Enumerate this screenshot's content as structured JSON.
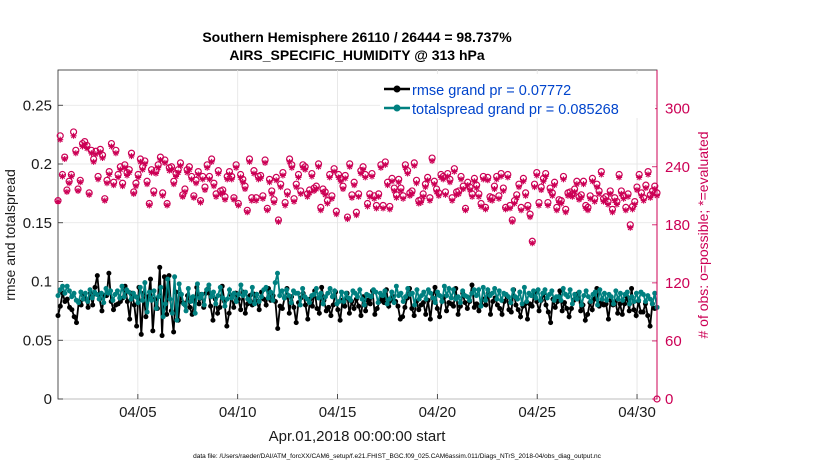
{
  "chart_data": {
    "type": "line",
    "title": "Southern Hemisphere 26110 / 26444 = 98.737%",
    "subtitle": "AIRS_SPECIFIC_HUMIDITY @ 313 hPa",
    "xlabel": "Apr.01,2018 00:00:00 start",
    "ylabel_left": "rmse and totalspread",
    "ylabel_right": "# of obs: o=possible; *=evaluated",
    "footer": "data file: /Users/raeder/DAI/ATM_forcXX/CAM6_setup/f.e21.FHIST_BGC.f09_025.CAM6assim.011/Diags_NTrS_2018-04/obs_diag_output.nc",
    "xlim": [
      1,
      31
    ],
    "ylim_left": [
      0,
      0.28
    ],
    "ylim_right": [
      0,
      340
    ],
    "xticks": [
      5,
      10,
      15,
      20,
      25,
      30
    ],
    "xtick_labels": [
      "04/05",
      "04/10",
      "04/15",
      "04/20",
      "04/25",
      "04/30"
    ],
    "yticks_left": [
      0,
      0.05,
      0.1,
      0.15,
      0.2,
      0.25
    ],
    "ytick_labels_left": [
      "0",
      "0.05",
      "0.1",
      "0.15",
      "0.2",
      "0.25"
    ],
    "yticks_right": [
      0,
      60,
      120,
      180,
      240,
      300
    ],
    "ytick_labels_right": [
      "0",
      "60",
      "120",
      "180",
      "240",
      "300"
    ],
    "legend": [
      "rmse grand pr = 0.07772",
      "totalspread grand pr = 0.085268"
    ],
    "colors": {
      "rmse": "#000000",
      "spread": "#008080",
      "obs": "#cc0055",
      "legend_text": "#0044cc"
    },
    "series": [
      {
        "name": "rmse",
        "axis": "left",
        "values": [
          0.071,
          0.079,
          0.09,
          0.083,
          0.085,
          0.078,
          0.076,
          0.07,
          0.065,
          0.083,
          0.08,
          0.088,
          0.085,
          0.078,
          0.09,
          0.08,
          0.095,
          0.105,
          0.085,
          0.075,
          0.088,
          0.088,
          0.107,
          0.083,
          0.076,
          0.08,
          0.081,
          0.083,
          0.086,
          0.096,
          0.083,
          0.068,
          0.09,
          0.08,
          0.062,
          0.095,
          0.055,
          0.09,
          0.07,
          0.087,
          0.102,
          0.058,
          0.085,
          0.077,
          0.112,
          0.054,
          0.104,
          0.072,
          0.105,
          0.075,
          0.057,
          0.091,
          0.067,
          0.089,
          0.082,
          0.08,
          0.088,
          0.078,
          0.072,
          0.083,
          0.095,
          0.081,
          0.089,
          0.078,
          0.09,
          0.094,
          0.079,
          0.067,
          0.085,
          0.073,
          0.078,
          0.096,
          0.083,
          0.062,
          0.073,
          0.088,
          0.078,
          0.09,
          0.085,
          0.076,
          0.091,
          0.073,
          0.081,
          0.088,
          0.08,
          0.089,
          0.083,
          0.076,
          0.091,
          0.085,
          0.08,
          0.094,
          0.084,
          0.088,
          0.083,
          0.06,
          0.079,
          0.077,
          0.086,
          0.094,
          0.073,
          0.087,
          0.078,
          0.065,
          0.082,
          0.086,
          0.09,
          0.08,
          0.068,
          0.085,
          0.079,
          0.092,
          0.077,
          0.073,
          0.095,
          0.084,
          0.075,
          0.078,
          0.071,
          0.08,
          0.091,
          0.076,
          0.067,
          0.084,
          0.079,
          0.09,
          0.073,
          0.083,
          0.077,
          0.085,
          0.079,
          0.071,
          0.087,
          0.075,
          0.084,
          0.081,
          0.092,
          0.072,
          0.077,
          0.083,
          0.085,
          0.082,
          0.093,
          0.079,
          0.084,
          0.087,
          0.083,
          0.079,
          0.068,
          0.07,
          0.078,
          0.086,
          0.094,
          0.077,
          0.071,
          0.083,
          0.076,
          0.08,
          0.082,
          0.072,
          0.084,
          0.068,
          0.086,
          0.095,
          0.077,
          0.07,
          0.083,
          0.087,
          0.075,
          0.082,
          0.081,
          0.079,
          0.094,
          0.072,
          0.079,
          0.09,
          0.082,
          0.077,
          0.083,
          0.097,
          0.078,
          0.081,
          0.075,
          0.08,
          0.085,
          0.08,
          0.09,
          0.072,
          0.083,
          0.086,
          0.08,
          0.077,
          0.072,
          0.083,
          0.088,
          0.076,
          0.074,
          0.093,
          0.08,
          0.076,
          0.07,
          0.079,
          0.081,
          0.068,
          0.081,
          0.079,
          0.091,
          0.083,
          0.075,
          0.084,
          0.09,
          0.08,
          0.074,
          0.065,
          0.085,
          0.078,
          0.083,
          0.092,
          0.075,
          0.082,
          0.077,
          0.07,
          0.077,
          0.084,
          0.089,
          0.09,
          0.075,
          0.08,
          0.067,
          0.072,
          0.082,
          0.076,
          0.085,
          0.094,
          0.079,
          0.082,
          0.08,
          0.081,
          0.068,
          0.084,
          0.08,
          0.083,
          0.073,
          0.081,
          0.072,
          0.081,
          0.087,
          0.075,
          0.094,
          0.076,
          0.071,
          0.083,
          0.074,
          0.074,
          0.081,
          0.071,
          0.062,
          0.081,
          0.077,
          0.078
        ]
      },
      {
        "name": "totalspread",
        "axis": "left",
        "values": [
          0.088,
          0.093,
          0.096,
          0.09,
          0.096,
          0.092,
          0.087,
          0.09,
          0.084,
          0.082,
          0.091,
          0.085,
          0.09,
          0.083,
          0.093,
          0.086,
          0.091,
          0.089,
          0.085,
          0.09,
          0.082,
          0.094,
          0.09,
          0.092,
          0.084,
          0.089,
          0.092,
          0.086,
          0.096,
          0.087,
          0.093,
          0.091,
          0.085,
          0.09,
          0.087,
          0.082,
          0.095,
          0.084,
          0.099,
          0.074,
          0.091,
          0.084,
          0.092,
          0.077,
          0.087,
          0.095,
          0.07,
          0.081,
          0.102,
          0.085,
          0.073,
          0.104,
          0.067,
          0.098,
          0.089,
          0.081,
          0.075,
          0.094,
          0.083,
          0.087,
          0.073,
          0.098,
          0.086,
          0.089,
          0.08,
          0.093,
          0.097,
          0.087,
          0.091,
          0.081,
          0.088,
          0.095,
          0.086,
          0.079,
          0.085,
          0.093,
          0.086,
          0.09,
          0.083,
          0.089,
          0.097,
          0.088,
          0.091,
          0.085,
          0.083,
          0.095,
          0.081,
          0.089,
          0.083,
          0.087,
          0.093,
          0.095,
          0.086,
          0.091,
          0.084,
          0.099,
          0.107,
          0.088,
          0.092,
          0.086,
          0.093,
          0.088,
          0.082,
          0.092,
          0.09,
          0.09,
          0.08,
          0.094,
          0.087,
          0.085,
          0.082,
          0.088,
          0.089,
          0.094,
          0.086,
          0.09,
          0.081,
          0.087,
          0.09,
          0.094,
          0.087,
          0.092,
          0.081,
          0.083,
          0.091,
          0.083,
          0.09,
          0.086,
          0.084,
          0.092,
          0.09,
          0.087,
          0.093,
          0.085,
          0.08,
          0.089,
          0.088,
          0.087,
          0.093,
          0.091,
          0.082,
          0.09,
          0.088,
          0.092,
          0.081,
          0.085,
          0.091,
          0.082,
          0.096,
          0.088,
          0.09,
          0.083,
          0.087,
          0.094,
          0.089,
          0.09,
          0.08,
          0.093,
          0.085,
          0.088,
          0.091,
          0.085,
          0.093,
          0.09,
          0.086,
          0.082,
          0.091,
          0.088,
          0.083,
          0.096,
          0.088,
          0.094,
          0.086,
          0.093,
          0.085,
          0.087,
          0.082,
          0.092,
          0.088,
          0.087,
          0.084,
          0.09,
          0.093,
          0.088,
          0.093,
          0.079,
          0.095,
          0.084,
          0.093,
          0.088,
          0.09,
          0.094,
          0.085,
          0.092,
          0.084,
          0.09,
          0.089,
          0.087,
          0.082,
          0.093,
          0.087,
          0.085,
          0.091,
          0.081,
          0.095,
          0.083,
          0.09,
          0.088,
          0.092,
          0.086,
          0.093,
          0.084,
          0.09,
          0.093,
          0.086,
          0.089,
          0.092,
          0.084,
          0.087,
          0.087,
          0.084,
          0.094,
          0.089,
          0.087,
          0.093,
          0.081,
          0.089,
          0.085,
          0.091,
          0.08,
          0.088,
          0.092,
          0.087,
          0.083,
          0.089,
          0.091,
          0.08,
          0.093,
          0.085,
          0.09,
          0.084,
          0.089,
          0.087,
          0.081,
          0.092,
          0.085,
          0.09,
          0.084,
          0.089,
          0.091,
          0.081,
          0.087,
          0.083,
          0.09,
          0.084,
          0.091,
          0.089,
          0.083,
          0.088,
          0.085,
          0.081,
          0.09,
          0.078
        ]
      },
      {
        "name": "obs_possible",
        "axis": "right",
        "values": [
          205,
          272,
          232,
          250,
          216,
          225,
          232,
          276,
          257,
          217,
          226,
          264,
          266,
          262,
          213,
          257,
          248,
          256,
          230,
          258,
          252,
          207,
          226,
          235,
          264,
          224,
          257,
          232,
          240,
          223,
          242,
          234,
          237,
          254,
          214,
          223,
          232,
          248,
          240,
          246,
          225,
          202,
          237,
          215,
          236,
          242,
          250,
          213,
          247,
          202,
          239,
          240,
          225,
          233,
          237,
          244,
          211,
          217,
          237,
          240,
          230,
          210,
          226,
          235,
          205,
          230,
          219,
          242,
          230,
          248,
          223,
          212,
          236,
          215,
          216,
          209,
          230,
          235,
          230,
          208,
          242,
          202,
          232,
          227,
          220,
          195,
          248,
          208,
          236,
          208,
          230,
          231,
          210,
          247,
          197,
          227,
          215,
          206,
          229,
          185,
          222,
          234,
          203,
          214,
          248,
          242,
          207,
          222,
          232,
          215,
          242,
          240,
          212,
          216,
          233,
          218,
          220,
          243,
          198,
          217,
          214,
          205,
          232,
          210,
          238,
          194,
          232,
          228,
          220,
          231,
          188,
          243,
          211,
          224,
          193,
          212,
          236,
          240,
          232,
          202,
          212,
          233,
          210,
          200,
          212,
          242,
          200,
          245,
          224,
          199,
          228,
          218,
          211,
          227,
          218,
          210,
          242,
          236,
          213,
          215,
          244,
          226,
          205,
          206,
          212,
          222,
          229,
          208,
          249,
          225,
          217,
          213,
          232,
          230,
          214,
          233,
          227,
          208,
          238,
          214,
          215,
          230,
          220,
          197,
          224,
          219,
          212,
          228,
          221,
          212,
          202,
          230,
          198,
          229,
          209,
          208,
          220,
          230,
          210,
          233,
          218,
          198,
          232,
          200,
          185,
          205,
          211,
          222,
          198,
          228,
          213,
          200,
          191,
          163,
          222,
          234,
          203,
          219,
          228,
          233,
          203,
          218,
          213,
          224,
          198,
          206,
          205,
          230,
          196,
          213,
          214,
          212,
          217,
          225,
          209,
          211,
          225,
          200,
          198,
          210,
          228,
          207,
          222,
          215,
          235,
          207,
          209,
          204,
          215,
          196,
          208,
          204,
          232,
          215,
          210,
          198,
          212,
          180,
          199,
          204,
          219,
          232,
          213,
          208,
          221,
          235,
          211,
          215,
          220,
          213
        ]
      },
      {
        "name": "obs_evaluated",
        "axis": "right",
        "values": [
          204,
          268,
          230,
          248,
          214,
          223,
          230,
          272,
          254,
          215,
          224,
          261,
          263,
          259,
          211,
          254,
          245,
          253,
          227,
          255,
          249,
          205,
          223,
          232,
          261,
          221,
          254,
          229,
          237,
          220,
          239,
          231,
          234,
          251,
          212,
          220,
          229,
          245,
          237,
          243,
          222,
          200,
          234,
          212,
          233,
          239,
          247,
          210,
          244,
          200,
          236,
          237,
          222,
          230,
          234,
          241,
          209,
          214,
          234,
          237,
          227,
          208,
          223,
          232,
          203,
          227,
          216,
          239,
          227,
          245,
          220,
          209,
          233,
          212,
          213,
          206,
          227,
          232,
          227,
          206,
          239,
          200,
          229,
          224,
          217,
          193,
          245,
          205,
          233,
          205,
          227,
          228,
          207,
          244,
          195,
          224,
          212,
          203,
          226,
          183,
          219,
          231,
          200,
          211,
          245,
          239,
          204,
          219,
          229,
          212,
          239,
          237,
          209,
          213,
          230,
          215,
          217,
          240,
          195,
          214,
          211,
          202,
          229,
          207,
          235,
          191,
          229,
          225,
          217,
          228,
          186,
          240,
          208,
          221,
          190,
          209,
          233,
          237,
          229,
          199,
          209,
          230,
          207,
          197,
          209,
          239,
          197,
          242,
          221,
          196,
          225,
          215,
          208,
          224,
          215,
          207,
          239,
          233,
          210,
          212,
          241,
          223,
          202,
          203,
          209,
          219,
          226,
          205,
          246,
          222,
          214,
          210,
          229,
          227,
          211,
          230,
          224,
          205,
          235,
          211,
          212,
          227,
          217,
          195,
          221,
          216,
          209,
          225,
          218,
          209,
          199,
          227,
          196,
          226,
          206,
          205,
          217,
          227,
          207,
          230,
          215,
          196,
          229,
          197,
          183,
          202,
          208,
          219,
          195,
          225,
          210,
          197,
          188,
          161,
          219,
          231,
          200,
          216,
          225,
          230,
          200,
          215,
          210,
          221,
          195,
          203,
          202,
          227,
          193,
          210,
          211,
          209,
          214,
          222,
          206,
          208,
          222,
          197,
          195,
          207,
          225,
          204,
          219,
          212,
          232,
          204,
          206,
          201,
          212,
          193,
          205,
          201,
          229,
          212,
          207,
          195,
          209,
          177,
          196,
          201,
          216,
          229,
          210,
          205,
          218,
          232,
          208,
          212,
          217,
          210
        ]
      }
    ]
  }
}
